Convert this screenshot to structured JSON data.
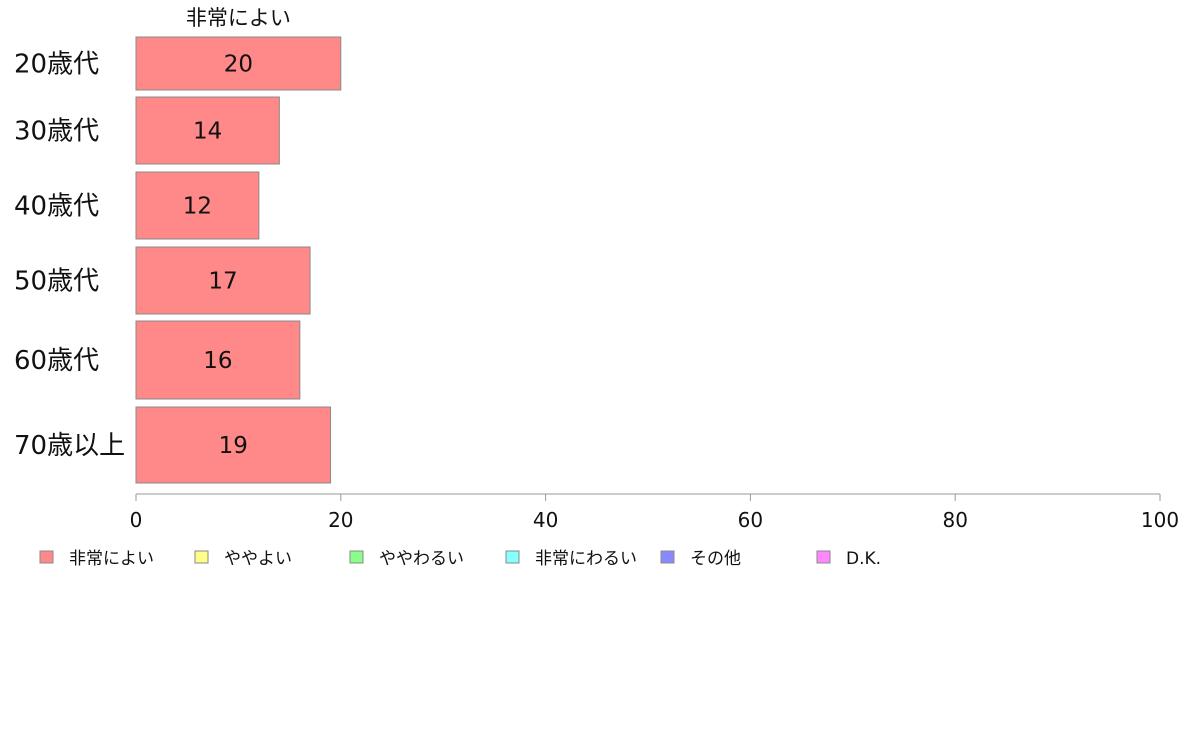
{
  "chart_data": {
    "type": "bar",
    "orientation": "horizontal",
    "stacked": true,
    "categories": [
      "20歳代",
      "30歳代",
      "40歳代",
      "50歳代",
      "60歳代",
      "70歳以上"
    ],
    "series": [
      {
        "name": "非常によい",
        "color": "#ff8888",
        "values": [
          20,
          14,
          12,
          17,
          16,
          19
        ]
      },
      {
        "name": "ややよい",
        "color": "#ffff88",
        "values": [
          0,
          0,
          0,
          0,
          0,
          0
        ]
      },
      {
        "name": "ややわるい",
        "color": "#88ff88",
        "values": [
          0,
          0,
          0,
          0,
          0,
          0
        ]
      },
      {
        "name": "非常にわるい",
        "color": "#88ffff",
        "values": [
          0,
          0,
          0,
          0,
          0,
          0
        ]
      },
      {
        "name": "その他",
        "color": "#8888ff",
        "values": [
          0,
          0,
          0,
          0,
          0,
          0
        ]
      },
      {
        "name": "D.K.",
        "color": "#ff88ff",
        "values": [
          0,
          0,
          0,
          0,
          0,
          0
        ]
      }
    ],
    "series_header": "非常によい",
    "xlim": [
      0,
      100
    ],
    "xticks": [
      "0",
      "20",
      "40",
      "60",
      "80",
      "100"
    ],
    "grid": false,
    "legend_position": "bottom"
  }
}
